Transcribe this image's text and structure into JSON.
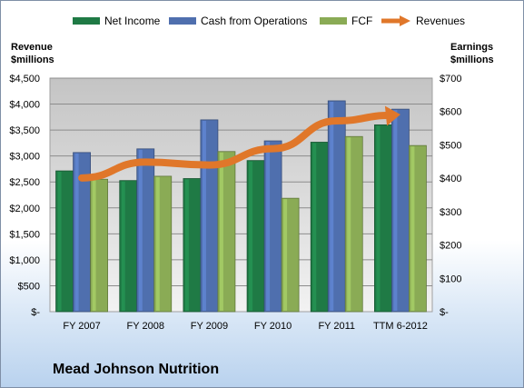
{
  "chart_data": {
    "type": "bar",
    "categories": [
      "FY 2007",
      "FY 2008",
      "FY 2009",
      "FY 2010",
      "FY 2011",
      "TTM 6-2012"
    ],
    "series": [
      {
        "name": "Net Income",
        "axis": "right",
        "color": "#1f7a45",
        "values": [
          422,
          393,
          399,
          453,
          508,
          560
        ]
      },
      {
        "name": "Cash from Operations",
        "axis": "right",
        "color": "#4f6fae",
        "values": [
          477,
          488,
          575,
          512,
          632,
          607
        ]
      },
      {
        "name": "FCF",
        "axis": "right",
        "color": "#8aab55",
        "values": [
          397,
          406,
          480,
          340,
          525,
          498
        ]
      }
    ],
    "line_series": {
      "name": "Revenues",
      "axis": "left",
      "color": "#e0772a",
      "values": [
        2577,
        2882,
        2826,
        3141,
        3677,
        3800
      ]
    },
    "left_axis": {
      "title_line1": "Revenue",
      "title_line2": "$millions",
      "ylim": [
        0,
        4500
      ],
      "tick_values": [
        0,
        500,
        1000,
        1500,
        2000,
        2500,
        3000,
        3500,
        4000,
        4500
      ],
      "tick_labels": [
        "$-",
        "$500",
        "$1,000",
        "$1,500",
        "$2,000",
        "$2,500",
        "$3,000",
        "$3,500",
        "$4,000",
        "$4,500"
      ]
    },
    "right_axis": {
      "title_line1": "Earnings",
      "title_line2": "$millions",
      "ylim": [
        0,
        700
      ],
      "tick_values": [
        0,
        100,
        200,
        300,
        400,
        500,
        600,
        700
      ],
      "tick_labels": [
        "$-",
        "$100",
        "$200",
        "$300",
        "$400",
        "$500",
        "$600",
        "$700"
      ]
    },
    "grid": true,
    "legend_position": "top"
  },
  "company_name": "Mead Johnson Nutrition"
}
